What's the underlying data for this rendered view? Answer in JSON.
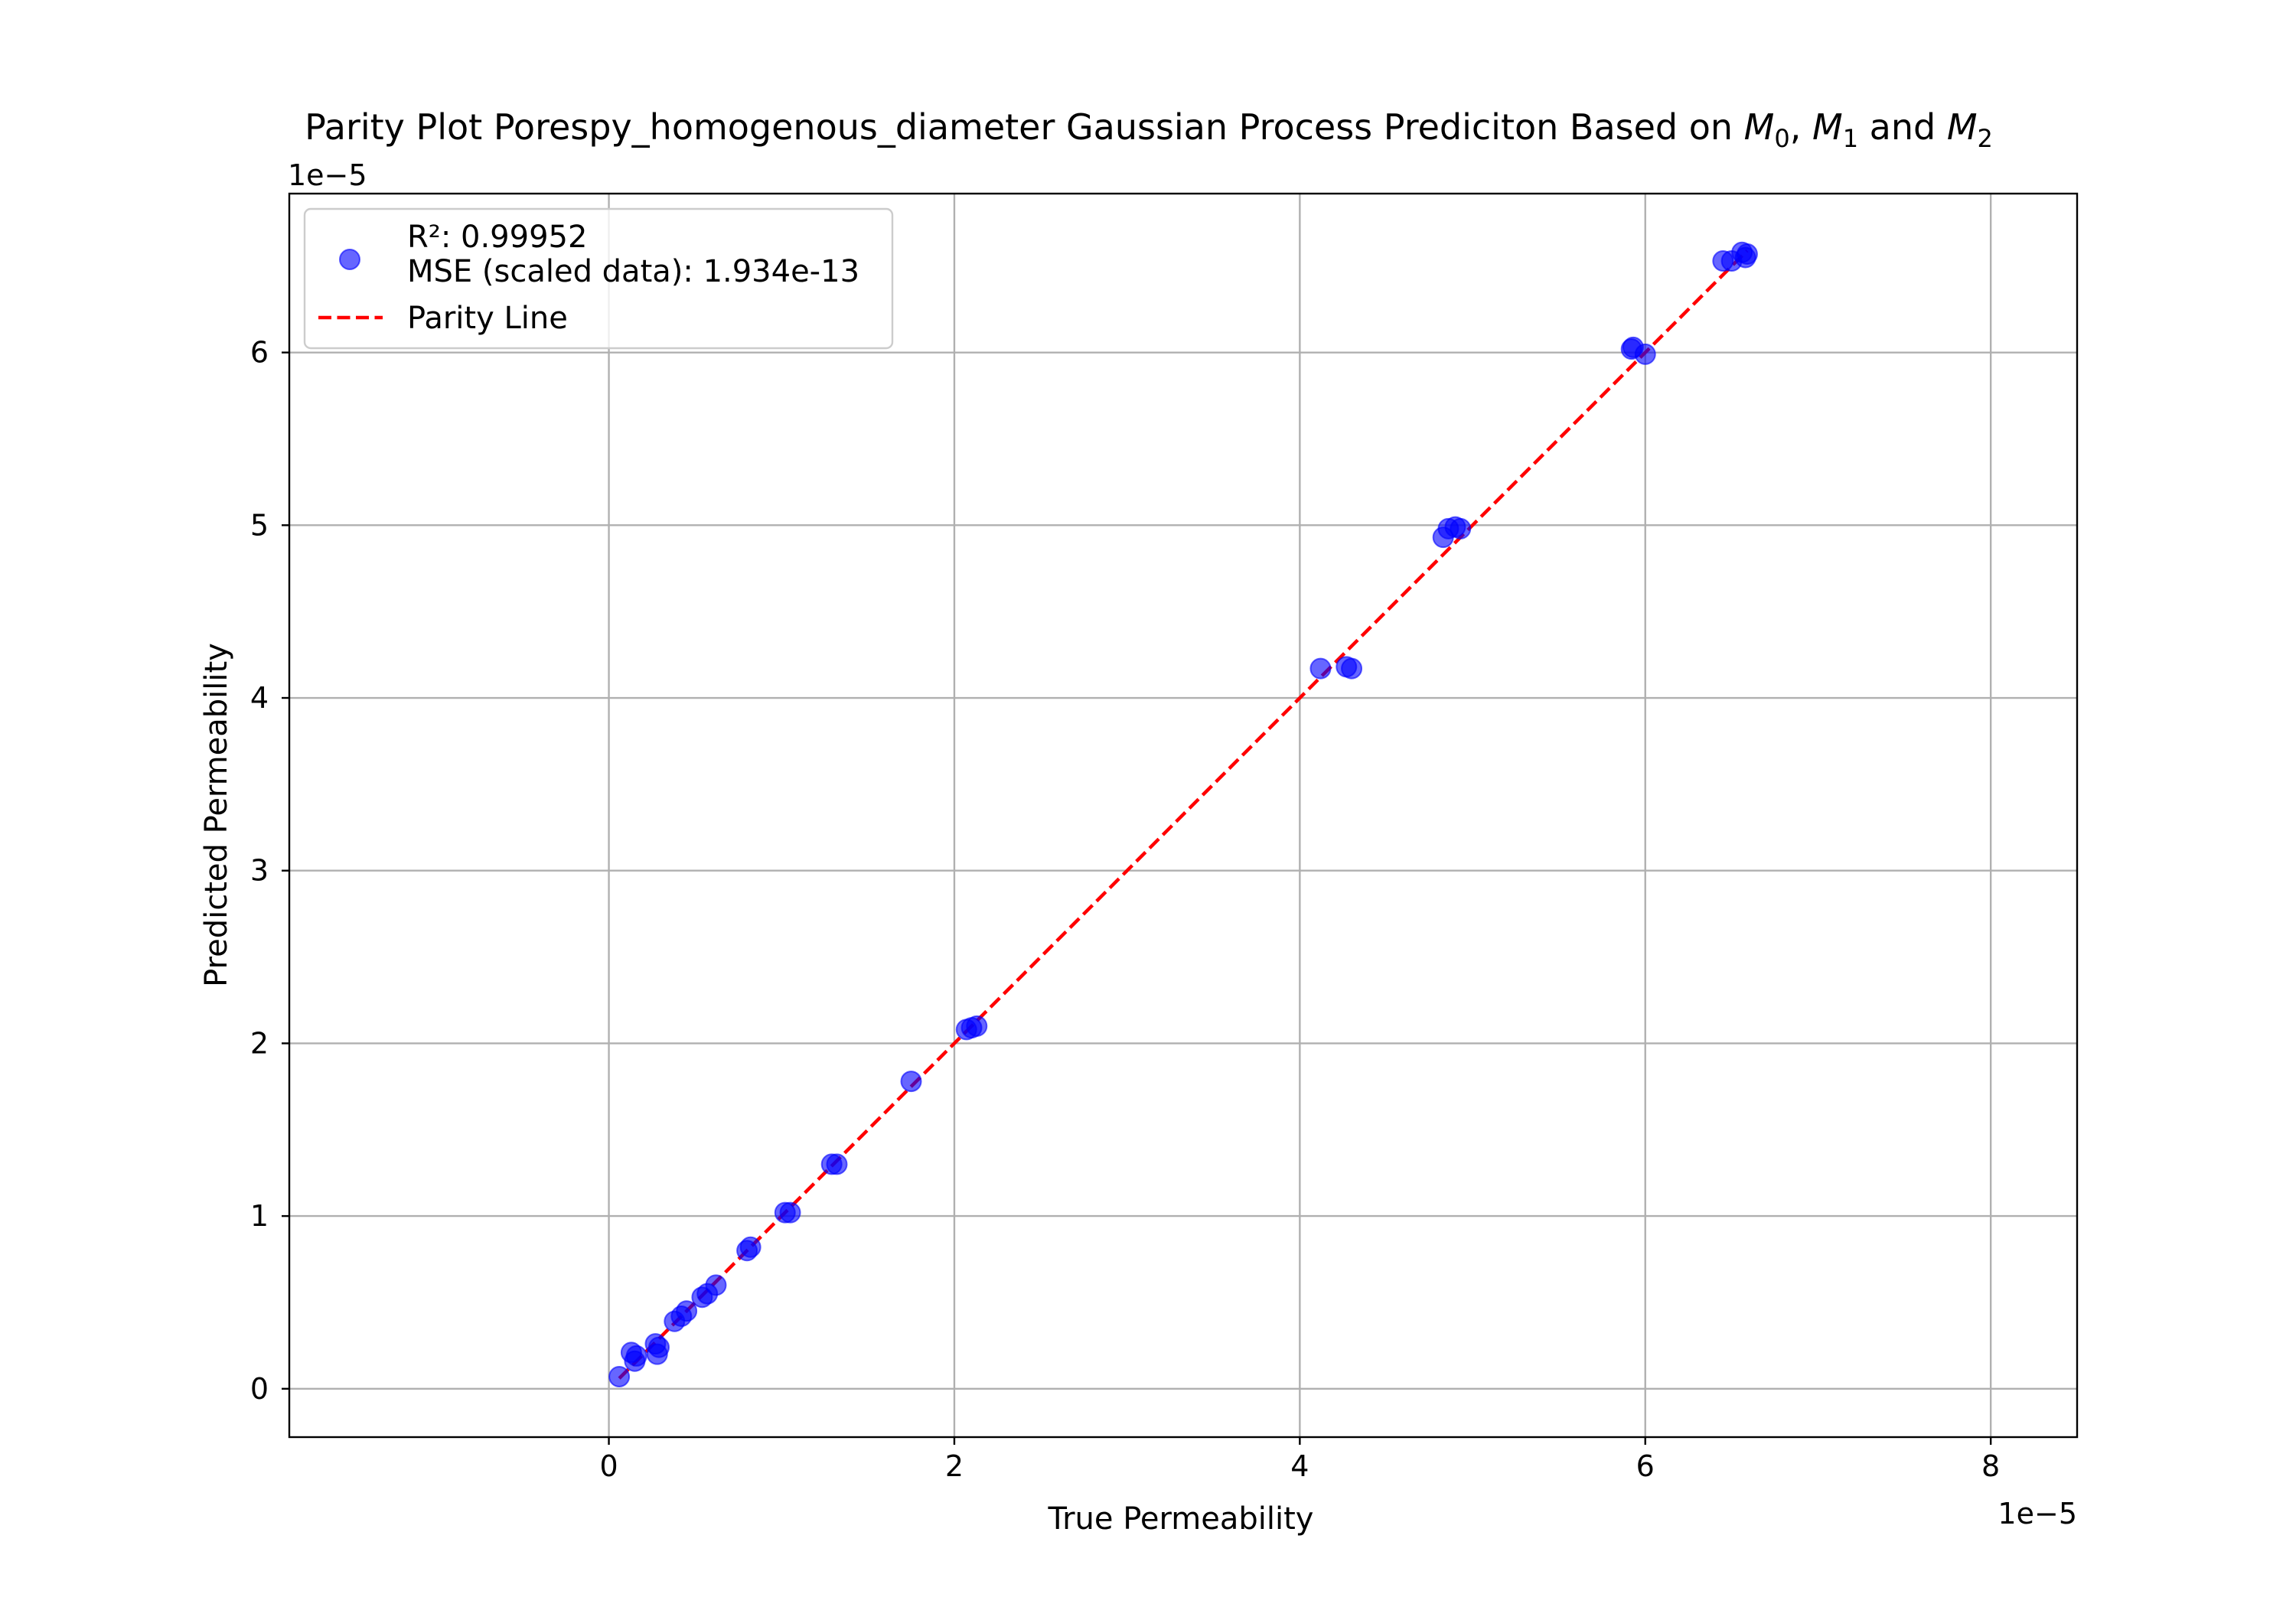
{
  "chart_data": {
    "type": "scatter",
    "title": {
      "prefix": "Parity Plot Porespy_homogenous_diameter Gaussian Process Prediciton Based on ",
      "moment_symbol": "M",
      "moment_subscripts": [
        "0",
        "1",
        "2"
      ],
      "separator": ", ",
      "conjunction": " and "
    },
    "xlabel": "True Permeability",
    "ylabel": "Predicted Permeability",
    "x_offset_text": "1e−5",
    "y_offset_text": "1e−5",
    "x_scale_factor": 1e-05,
    "y_scale_factor": 1e-05,
    "xlim": [
      -1.85,
      8.5
    ],
    "ylim": [
      -0.28,
      6.92
    ],
    "xticks": [
      0,
      2,
      4,
      6,
      8
    ],
    "yticks": [
      0,
      1,
      2,
      3,
      4,
      5,
      6
    ],
    "grid": true,
    "legend_position": "upper-left",
    "series": [
      {
        "name": "R²: 0.99952\nMSE (scaled data): 1.934e-13",
        "legend_lines": [
          "R²: 0.99952",
          "MSE (scaled data): 1.934e-13"
        ],
        "kind": "scatter",
        "color": "#0000ff",
        "opacity": 0.6,
        "x": [
          0.06,
          0.13,
          0.15,
          0.16,
          0.27,
          0.28,
          0.29,
          0.38,
          0.42,
          0.45,
          0.54,
          0.57,
          0.62,
          0.8,
          0.82,
          1.02,
          1.05,
          1.29,
          1.32,
          1.75,
          2.07,
          2.1,
          2.13,
          4.12,
          4.27,
          4.3,
          4.83,
          4.86,
          4.9,
          4.93,
          5.92,
          5.93,
          6.0,
          6.45,
          6.5,
          6.56,
          6.58,
          6.59
        ],
        "y": [
          0.07,
          0.21,
          0.16,
          0.19,
          0.26,
          0.2,
          0.24,
          0.39,
          0.42,
          0.45,
          0.53,
          0.55,
          0.6,
          0.8,
          0.82,
          1.02,
          1.02,
          1.3,
          1.3,
          1.78,
          2.08,
          2.09,
          2.1,
          4.17,
          4.18,
          4.17,
          4.93,
          4.98,
          4.99,
          4.98,
          6.02,
          6.03,
          5.99,
          6.53,
          6.53,
          6.58,
          6.55,
          6.57
        ]
      },
      {
        "name": "Parity Line",
        "kind": "line",
        "color": "#ff0000",
        "dashed": true,
        "x": [
          0.06,
          6.59
        ],
        "y": [
          0.06,
          6.59
        ]
      }
    ]
  }
}
